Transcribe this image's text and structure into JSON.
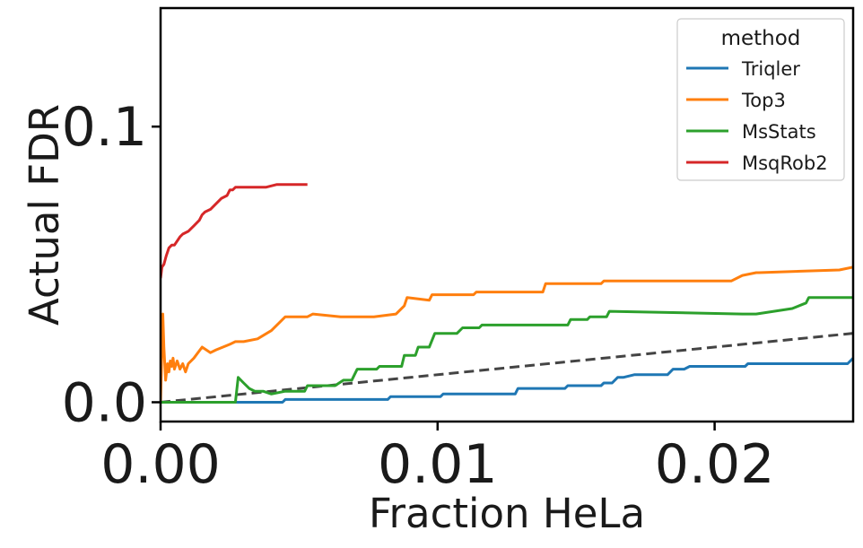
{
  "chart_data": {
    "type": "line",
    "xlabel": "Fraction HeLa",
    "ylabel": "Actual FDR",
    "xlim": [
      0,
      0.025
    ],
    "ylim": [
      -0.007,
      0.143
    ],
    "xticks": [
      0.0,
      0.01,
      0.02
    ],
    "xtick_labels": [
      "0.00",
      "0.01",
      "0.02"
    ],
    "yticks": [
      0.0,
      0.1
    ],
    "ytick_labels": [
      "0.0",
      "0.1"
    ],
    "legend": {
      "title": "method",
      "placement": "top-right"
    },
    "grid": false,
    "reference_line": {
      "style": "dashed",
      "color": "#444444",
      "x": [
        0,
        0.025
      ],
      "y": [
        0,
        0.025
      ]
    },
    "series": [
      {
        "name": "Triqler",
        "color": "#1f77b4",
        "x": [
          0,
          0.0044,
          0.0045,
          0.0082,
          0.0083,
          0.0101,
          0.0102,
          0.0128,
          0.0129,
          0.0146,
          0.0147,
          0.0159,
          0.016,
          0.0163,
          0.0165,
          0.0167,
          0.0171,
          0.0183,
          0.0185,
          0.0189,
          0.0191,
          0.0201,
          0.0211,
          0.0212,
          0.0223,
          0.0248,
          0.025
        ],
        "y": [
          0,
          0,
          0.001,
          0.001,
          0.002,
          0.002,
          0.003,
          0.003,
          0.005,
          0.005,
          0.006,
          0.006,
          0.007,
          0.007,
          0.009,
          0.009,
          0.01,
          0.01,
          0.012,
          0.012,
          0.013,
          0.013,
          0.013,
          0.014,
          0.014,
          0.014,
          0.016
        ]
      },
      {
        "name": "Top3",
        "color": "#ff7f0e",
        "x": [
          0,
          8e-05,
          0.00012,
          0.00018,
          0.00025,
          0.0003,
          0.00035,
          0.0004,
          0.00045,
          0.0005,
          0.0006,
          0.0007,
          0.0008,
          0.0009,
          0.001,
          0.0012,
          0.0015,
          0.0018,
          0.002,
          0.0025,
          0.0027,
          0.003,
          0.0035,
          0.004,
          0.0045,
          0.0053,
          0.0055,
          0.0065,
          0.0077,
          0.0085,
          0.0088,
          0.0089,
          0.0097,
          0.0098,
          0.0113,
          0.0114,
          0.0128,
          0.0138,
          0.0139,
          0.0156,
          0.0159,
          0.016,
          0.0205,
          0.0206,
          0.021,
          0.0215,
          0.0216,
          0.0245,
          0.025
        ],
        "y": [
          0,
          0.032,
          0.02,
          0.008,
          0.014,
          0.011,
          0.015,
          0.013,
          0.016,
          0.012,
          0.015,
          0.012,
          0.014,
          0.011,
          0.014,
          0.016,
          0.02,
          0.018,
          0.019,
          0.021,
          0.022,
          0.022,
          0.023,
          0.026,
          0.031,
          0.031,
          0.032,
          0.031,
          0.031,
          0.032,
          0.035,
          0.038,
          0.037,
          0.039,
          0.039,
          0.04,
          0.04,
          0.04,
          0.043,
          0.043,
          0.043,
          0.044,
          0.044,
          0.044,
          0.046,
          0.047,
          0.047,
          0.048,
          0.049
        ]
      },
      {
        "name": "MsStats",
        "color": "#2ca02c",
        "x": [
          0,
          0.0027,
          0.0028,
          0.003,
          0.0032,
          0.0034,
          0.0037,
          0.004,
          0.0045,
          0.0052,
          0.0053,
          0.0063,
          0.0066,
          0.0069,
          0.0071,
          0.0078,
          0.0079,
          0.0087,
          0.0088,
          0.0092,
          0.0093,
          0.0097,
          0.0099,
          0.0107,
          0.0109,
          0.0115,
          0.0116,
          0.0147,
          0.0148,
          0.0154,
          0.0155,
          0.0161,
          0.0162,
          0.021,
          0.0215,
          0.0228,
          0.0233,
          0.0234,
          0.0245,
          0.025
        ],
        "y": [
          0,
          0,
          0.009,
          0.007,
          0.005,
          0.004,
          0.004,
          0.003,
          0.004,
          0.004,
          0.006,
          0.006,
          0.008,
          0.008,
          0.012,
          0.012,
          0.013,
          0.013,
          0.017,
          0.017,
          0.02,
          0.02,
          0.025,
          0.025,
          0.027,
          0.027,
          0.028,
          0.028,
          0.03,
          0.03,
          0.031,
          0.031,
          0.033,
          0.032,
          0.032,
          0.034,
          0.036,
          0.038,
          0.038,
          0.038
        ]
      },
      {
        "name": "MsqRob2",
        "color": "#d62728",
        "x": [
          0,
          5e-05,
          0.00012,
          0.0002,
          0.0003,
          0.0004,
          0.0005,
          0.0007,
          0.0008,
          0.001,
          0.0012,
          0.0014,
          0.0015,
          0.0016,
          0.0018,
          0.0019,
          0.002,
          0.0022,
          0.0024,
          0.0025,
          0.0026,
          0.0027,
          0.003,
          0.0036,
          0.0038,
          0.0042,
          0.0045,
          0.0053
        ],
        "y": [
          0.045,
          0.049,
          0.05,
          0.053,
          0.056,
          0.057,
          0.057,
          0.06,
          0.061,
          0.062,
          0.064,
          0.066,
          0.068,
          0.069,
          0.07,
          0.071,
          0.072,
          0.074,
          0.075,
          0.077,
          0.077,
          0.078,
          0.078,
          0.078,
          0.078,
          0.079,
          0.079,
          0.079
        ]
      }
    ]
  }
}
